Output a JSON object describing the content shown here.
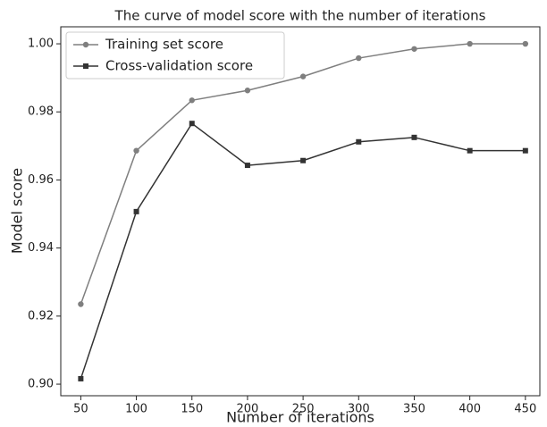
{
  "chart_data": {
    "type": "line",
    "title": "The curve of model score with the number of iterations",
    "x_label": "Number of iterations",
    "y_label": "Model score",
    "x": [
      50,
      100,
      150,
      200,
      250,
      300,
      350,
      400,
      450
    ],
    "series": [
      {
        "name": "Training set score",
        "color": "#7f7f7f",
        "marker": "circle",
        "values": [
          0.9235,
          0.9686,
          0.9834,
          0.9863,
          0.9904,
          0.9958,
          0.9985,
          1.0,
          1.0
        ]
      },
      {
        "name": "Cross-validation score",
        "color": "#333333",
        "marker": "square",
        "values": [
          0.9016,
          0.9507,
          0.9766,
          0.9643,
          0.9657,
          0.9712,
          0.9725,
          0.9686,
          0.9686
        ]
      }
    ],
    "xlim": [
      32,
      463
    ],
    "xticks": [
      50,
      100,
      150,
      200,
      250,
      300,
      350,
      400,
      450
    ],
    "ylim": [
      0.8966,
      1.005
    ],
    "yticks": [
      {
        "value": 0.9,
        "label": "0.90"
      },
      0.92,
      0.94,
      0.96,
      0.98,
      {
        "value": 1.0,
        "label": "1.00"
      }
    ],
    "legend": "upper left",
    "grid": false
  }
}
